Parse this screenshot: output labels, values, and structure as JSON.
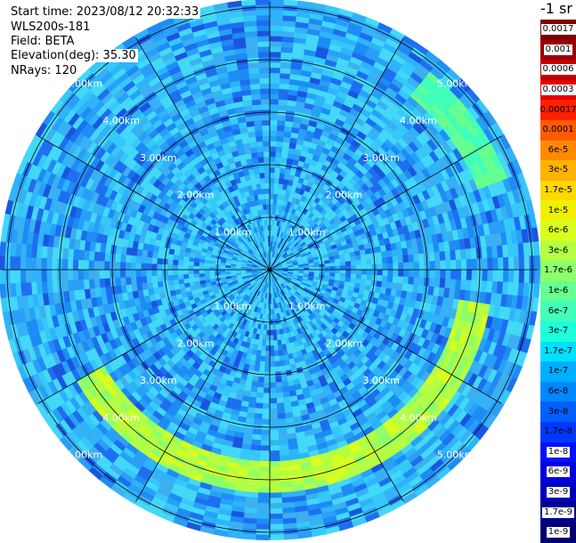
{
  "header": {
    "start_time": "Start time: 2023/08/12 20:32:33",
    "device": "WLS200s-181",
    "field": "Field: BETA",
    "elevation": "Elevation(deg): 35.30",
    "nrays": "NRays: 120"
  },
  "colorbar": {
    "unit": "-1 sr",
    "ticks": [
      "0.0017",
      "0.001",
      "0.0006",
      "0.0003",
      "0.00017",
      "0.0001",
      "6e-5",
      "3e-5",
      "1.7e-5",
      "1e-5",
      "6e-6",
      "3e-6",
      "1.7e-6",
      "1e-6",
      "6e-7",
      "3e-7",
      "1.7e-7",
      "1e-7",
      "6e-8",
      "3e-8",
      "1.7e-8",
      "1e-8",
      "6e-9",
      "3e-9",
      "1.7e-9",
      "1e-9"
    ],
    "colors": [
      "#7f0000",
      "#9a0000",
      "#c00000",
      "#e40000",
      "#ff2000",
      "#ff5a00",
      "#ff8a00",
      "#ffb200",
      "#ffd800",
      "#f0f000",
      "#d8ff1e",
      "#b4ff43",
      "#8cff6a",
      "#66ff91",
      "#41ffb8",
      "#1effdc",
      "#00e0ff",
      "#00b0ff",
      "#0088ff",
      "#0060ff",
      "#0038ff",
      "#0010ff",
      "#0000e0",
      "#0000b8",
      "#000090",
      "#000070"
    ]
  },
  "chart_data": {
    "type": "heatmap",
    "projection": "polar-ppi",
    "field": "BETA",
    "elevation_deg": 35.3,
    "n_rays": 120,
    "range_rings_km": [
      1,
      2,
      3,
      4,
      5
    ],
    "range_ring_labels": [
      "1.00km",
      "2.00km",
      "3.00km",
      "4.00km",
      "5.00km"
    ],
    "azimuth_spokes_deg": [
      0,
      30,
      60,
      90,
      120,
      150,
      180,
      210,
      240,
      270,
      300,
      330
    ],
    "max_range_km": 5.1,
    "features": [
      {
        "description": "aerosol layer arc",
        "range_km": [
          3.7,
          4.3
        ],
        "azimuth_deg": [
          100,
          240
        ],
        "value_approx": "1e-6"
      },
      {
        "description": "secondary arc",
        "range_km": [
          4.3,
          4.8
        ],
        "azimuth_deg": [
          40,
          70
        ],
        "value_approx": "6e-7"
      }
    ],
    "background_value_approx": "1e-7"
  }
}
